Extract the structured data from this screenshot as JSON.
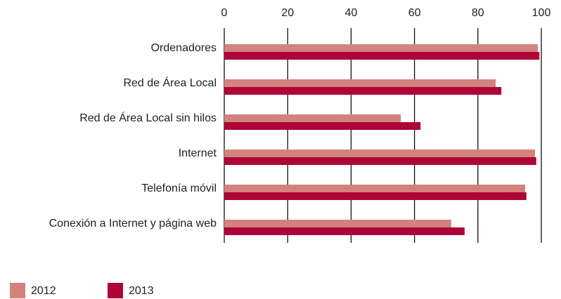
{
  "chart_data": {
    "type": "bar",
    "orientation": "horizontal",
    "categories": [
      "Ordenadores",
      "Red de Área Local",
      "Red de Área Local sin hilos",
      "Internet",
      "Telefonía móvil",
      "Conexión a Internet y página web"
    ],
    "series": [
      {
        "name": "2012",
        "color": "#d4827e",
        "values": [
          98.9,
          85.6,
          55.7,
          98.0,
          94.9,
          71.6
        ]
      },
      {
        "name": "2013",
        "color": "#ad0538",
        "values": [
          99.4,
          87.4,
          61.9,
          98.4,
          95.3,
          75.8
        ]
      }
    ],
    "xlim": [
      0,
      100
    ],
    "xticks": [
      0,
      20,
      40,
      60,
      80,
      100
    ],
    "grid": true,
    "legend": "bottom-left"
  }
}
